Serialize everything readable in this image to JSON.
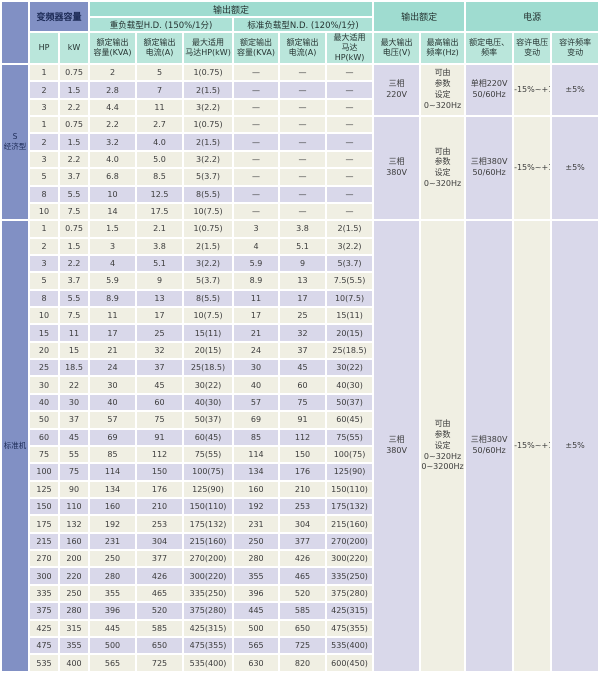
{
  "colors": {
    "section_label_blue": "#8190c4",
    "header_teal_dark": "#9fdcd0",
    "header_teal_mid": "#ace1d6",
    "header_teal_light": "#bae6db",
    "row_cream": "#f0efe3",
    "row_lavender": "#d9d8ea"
  },
  "table": {
    "header": {
      "capacity_group": "变频器容量",
      "output_rating_left": "输出额定",
      "hd_group": "重负载型H.D. (150%/1分)",
      "nd_group": "标准负载型N.D. (120%/1分)",
      "output_rating_right": "输出额定",
      "power_group": "电源",
      "col_hp": "HP",
      "col_kw": "kW",
      "col_kva": "额定输出\n容量(KVA)",
      "col_current": "额定输出\n电流(A)",
      "col_motor": "最大适用\n马达HP(kW)",
      "col_max_voltage": "最大输出\n电压(V)",
      "col_max_freq": "最高输出\n频率(Hz)",
      "col_rated_voltage_freq": "额定电压、\n频率",
      "col_voltage_var": "容许电压\n变动",
      "col_freq_var": "容许频率\n变动"
    },
    "sections": [
      {
        "label": "S\n经济型",
        "groups": [
          {
            "shades": [
              0,
              1,
              0
            ],
            "rows": [
              [
                "1",
                "0.75",
                "2",
                "5",
                "1(0.75)",
                "—",
                "—",
                "—"
              ],
              [
                "2",
                "1.5",
                "2.8",
                "7",
                "2(1.5)",
                "—",
                "—",
                "—"
              ],
              [
                "3",
                "2.2",
                "4.4",
                "11",
                "3(2.2)",
                "—",
                "—",
                "—"
              ]
            ],
            "merged": {
              "voltage": "三相\n220V",
              "freq_set": "可由\n参数\n设定\n0~320Hz",
              "supply": "单相220V\n50/60Hz",
              "volt_var": "-15%~+10%",
              "freq_var": "±5%"
            }
          },
          {
            "shades": [
              0,
              1,
              0,
              0,
              1,
              0
            ],
            "rows": [
              [
                "1",
                "0.75",
                "2.2",
                "2.7",
                "1(0.75)",
                "—",
                "—",
                "—"
              ],
              [
                "2",
                "1.5",
                "3.2",
                "4.0",
                "2(1.5)",
                "—",
                "—",
                "—"
              ],
              [
                "3",
                "2.2",
                "4.0",
                "5.0",
                "3(2.2)",
                "—",
                "—",
                "—"
              ],
              [
                "5",
                "3.7",
                "6.8",
                "8.5",
                "5(3.7)",
                "—",
                "—",
                "—"
              ],
              [
                "8",
                "5.5",
                "10",
                "12.5",
                "8(5.5)",
                "—",
                "—",
                "—"
              ],
              [
                "10",
                "7.5",
                "14",
                "17.5",
                "10(7.5)",
                "—",
                "—",
                "—"
              ]
            ],
            "merged": {
              "voltage": "三相\n380V",
              "freq_set": "可由\n参数\n设定\n0~320Hz",
              "supply": "三相380V\n50/60Hz",
              "volt_var": "-15%~+10%",
              "freq_var": "±5%"
            }
          }
        ]
      },
      {
        "label": "标准机",
        "groups": [
          {
            "shades": [
              0,
              0,
              1,
              0,
              1,
              0,
              1,
              0,
              1,
              0,
              1,
              0,
              1,
              0,
              1,
              0,
              1,
              0,
              1,
              0,
              1,
              0,
              1,
              0,
              1,
              0
            ],
            "rows": [
              [
                "1",
                "0.75",
                "1.5",
                "2.1",
                "1(0.75)",
                "3",
                "3.8",
                "2(1.5)"
              ],
              [
                "2",
                "1.5",
                "3",
                "3.8",
                "2(1.5)",
                "4",
                "5.1",
                "3(2.2)"
              ],
              [
                "3",
                "2.2",
                "4",
                "5.1",
                "3(2.2)",
                "5.9",
                "9",
                "5(3.7)"
              ],
              [
                "5",
                "3.7",
                "5.9",
                "9",
                "5(3.7)",
                "8.9",
                "13",
                "7.5(5.5)"
              ],
              [
                "8",
                "5.5",
                "8.9",
                "13",
                "8(5.5)",
                "11",
                "17",
                "10(7.5)"
              ],
              [
                "10",
                "7.5",
                "11",
                "17",
                "10(7.5)",
                "17",
                "25",
                "15(11)"
              ],
              [
                "15",
                "11",
                "17",
                "25",
                "15(11)",
                "21",
                "32",
                "20(15)"
              ],
              [
                "20",
                "15",
                "21",
                "32",
                "20(15)",
                "24",
                "37",
                "25(18.5)"
              ],
              [
                "25",
                "18.5",
                "24",
                "37",
                "25(18.5)",
                "30",
                "45",
                "30(22)"
              ],
              [
                "30",
                "22",
                "30",
                "45",
                "30(22)",
                "40",
                "60",
                "40(30)"
              ],
              [
                "40",
                "30",
                "40",
                "60",
                "40(30)",
                "57",
                "75",
                "50(37)"
              ],
              [
                "50",
                "37",
                "57",
                "75",
                "50(37)",
                "69",
                "91",
                "60(45)"
              ],
              [
                "60",
                "45",
                "69",
                "91",
                "60(45)",
                "85",
                "112",
                "75(55)"
              ],
              [
                "75",
                "55",
                "85",
                "112",
                "75(55)",
                "114",
                "150",
                "100(75)"
              ],
              [
                "100",
                "75",
                "114",
                "150",
                "100(75)",
                "134",
                "176",
                "125(90)"
              ],
              [
                "125",
                "90",
                "134",
                "176",
                "125(90)",
                "160",
                "210",
                "150(110)"
              ],
              [
                "150",
                "110",
                "160",
                "210",
                "150(110)",
                "192",
                "253",
                "175(132)"
              ],
              [
                "175",
                "132",
                "192",
                "253",
                "175(132)",
                "231",
                "304",
                "215(160)"
              ],
              [
                "215",
                "160",
                "231",
                "304",
                "215(160)",
                "250",
                "377",
                "270(200)"
              ],
              [
                "270",
                "200",
                "250",
                "377",
                "270(200)",
                "280",
                "426",
                "300(220)"
              ],
              [
                "300",
                "220",
                "280",
                "426",
                "300(220)",
                "355",
                "465",
                "335(250)"
              ],
              [
                "335",
                "250",
                "355",
                "465",
                "335(250)",
                "396",
                "520",
                "375(280)"
              ],
              [
                "375",
                "280",
                "396",
                "520",
                "375(280)",
                "445",
                "585",
                "425(315)"
              ],
              [
                "425",
                "315",
                "445",
                "585",
                "425(315)",
                "500",
                "650",
                "475(355)"
              ],
              [
                "475",
                "355",
                "500",
                "650",
                "475(355)",
                "565",
                "725",
                "535(400)"
              ],
              [
                "535",
                "400",
                "565",
                "725",
                "535(400)",
                "630",
                "820",
                "600(450)"
              ]
            ],
            "merged": {
              "voltage": "三相\n380V",
              "freq_set": "可由\n参数\n设定\n0~320Hz\n0~3200Hz",
              "supply": "三相380V\n50/60Hz",
              "volt_var": "-15%~+10%",
              "freq_var": "±5%"
            }
          }
        ]
      }
    ]
  }
}
